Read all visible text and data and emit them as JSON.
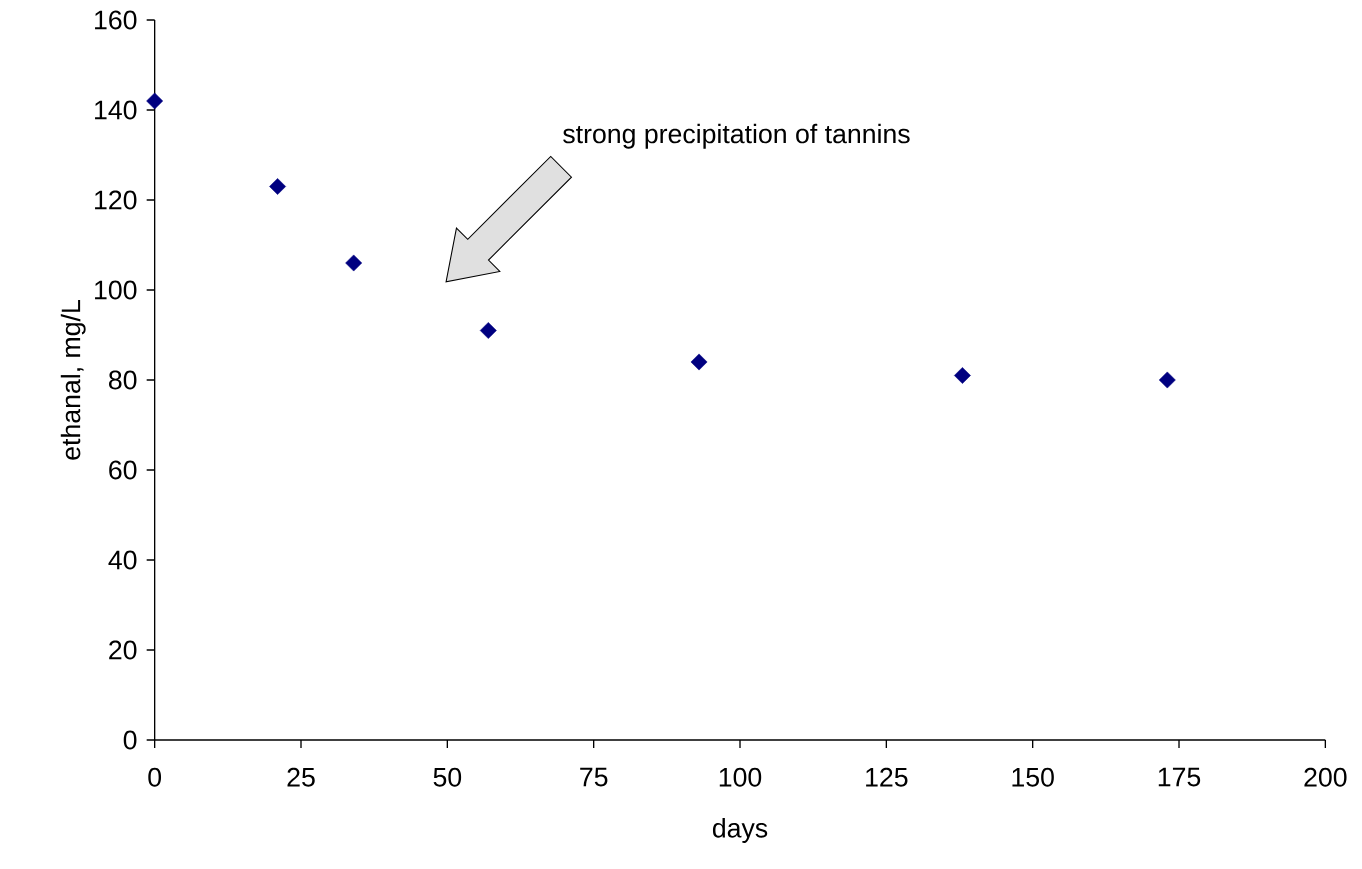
{
  "chart_data": {
    "type": "scatter",
    "xlabel": "days",
    "ylabel": "ethanal, mg/L",
    "x": [
      0,
      21,
      34,
      57,
      93,
      138,
      173
    ],
    "values": [
      142,
      123,
      106,
      91,
      84,
      81,
      80
    ],
    "color": "#000080",
    "marker": "diamond",
    "xlim": [
      0,
      200
    ],
    "xticks": [
      0,
      25,
      50,
      75,
      100,
      125,
      150,
      175,
      200
    ],
    "ylim": [
      0,
      160
    ],
    "yticks": [
      0,
      20,
      40,
      60,
      80,
      100,
      120,
      140,
      160
    ],
    "annotations": [
      "strong precipitation of tannins"
    ]
  }
}
